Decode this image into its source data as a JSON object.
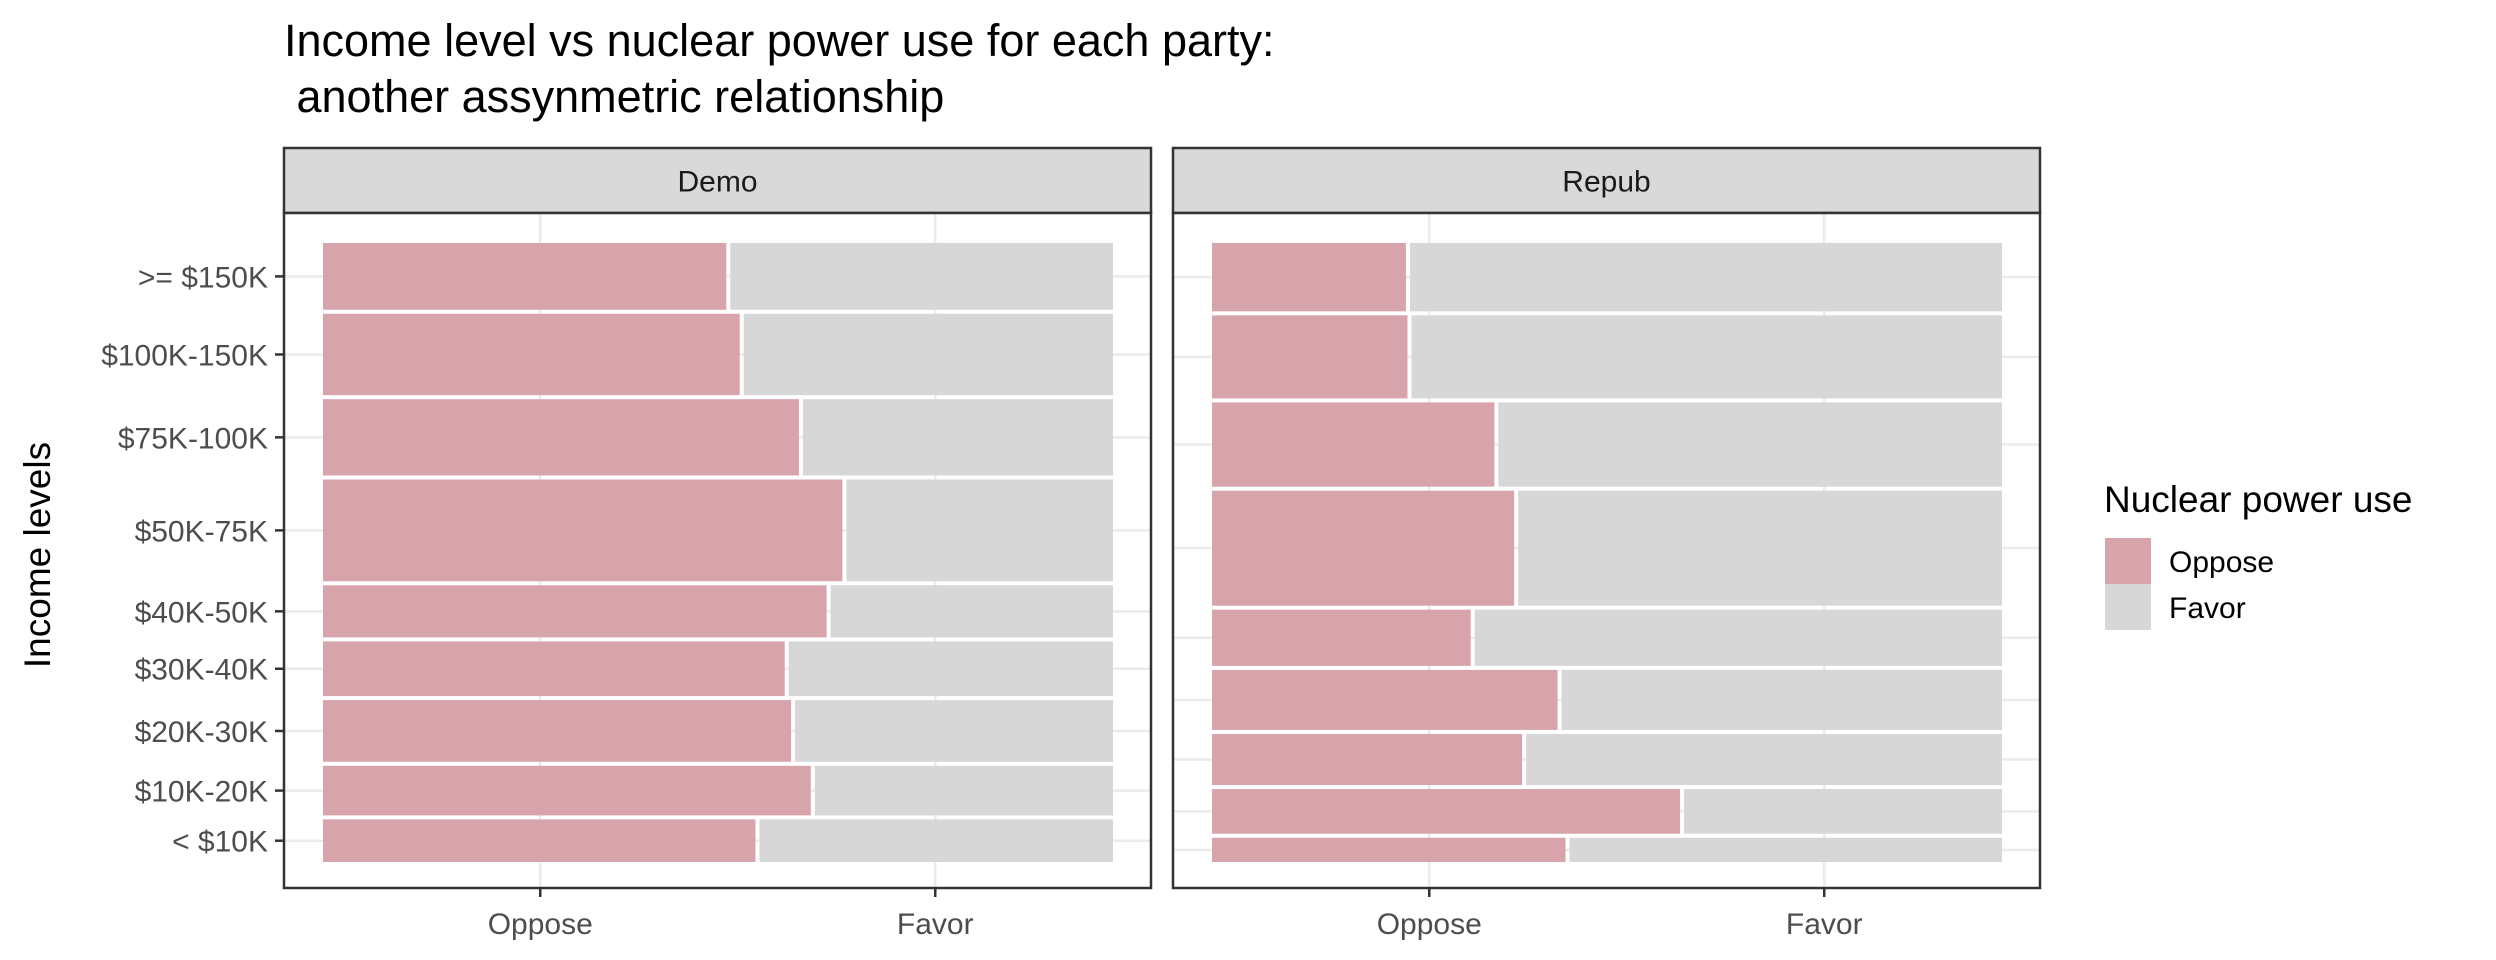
{
  "chart_data": {
    "type": "mosaic",
    "title_line1": "Income level vs nuclear power use for each party:",
    "title_line2": " another assynmetric relationship",
    "ylabel": "Income levels",
    "xlabel": "",
    "x_ticks": [
      "Oppose",
      "Favor"
    ],
    "categories": [
      "< $10K",
      "$10K-20K",
      "$20K-30K",
      "$30K-40K",
      "$40K-50K",
      "$50K-75K",
      "$75K-100K",
      "$100K-150K",
      ">= $150K"
    ],
    "legend": {
      "title": "Nuclear power use",
      "placement": "right",
      "items": [
        {
          "label": "Oppose",
          "color": "#D7A4AC"
        },
        {
          "label": "Favor",
          "color": "#D7D7D7"
        }
      ]
    },
    "colors": {
      "oppose": "#D7A4AC",
      "favor": "#D7D7D7",
      "strip_bg": "#D9D9D9",
      "grid": "#EBEBEB"
    },
    "panels": [
      {
        "name": "Demo",
        "income_share": [
          0.067,
          0.078,
          0.097,
          0.086,
          0.082,
          0.16,
          0.12,
          0.128,
          0.105
        ],
        "oppose_fraction": [
          0.55,
          0.62,
          0.595,
          0.587,
          0.64,
          0.66,
          0.605,
          0.53,
          0.513
        ]
      },
      {
        "name": "Repub",
        "income_share": [
          0.038,
          0.07,
          0.08,
          0.094,
          0.088,
          0.18,
          0.132,
          0.13,
          0.107
        ],
        "oppose_fraction": [
          0.45,
          0.595,
          0.395,
          0.44,
          0.33,
          0.385,
          0.36,
          0.25,
          0.248
        ]
      }
    ]
  }
}
